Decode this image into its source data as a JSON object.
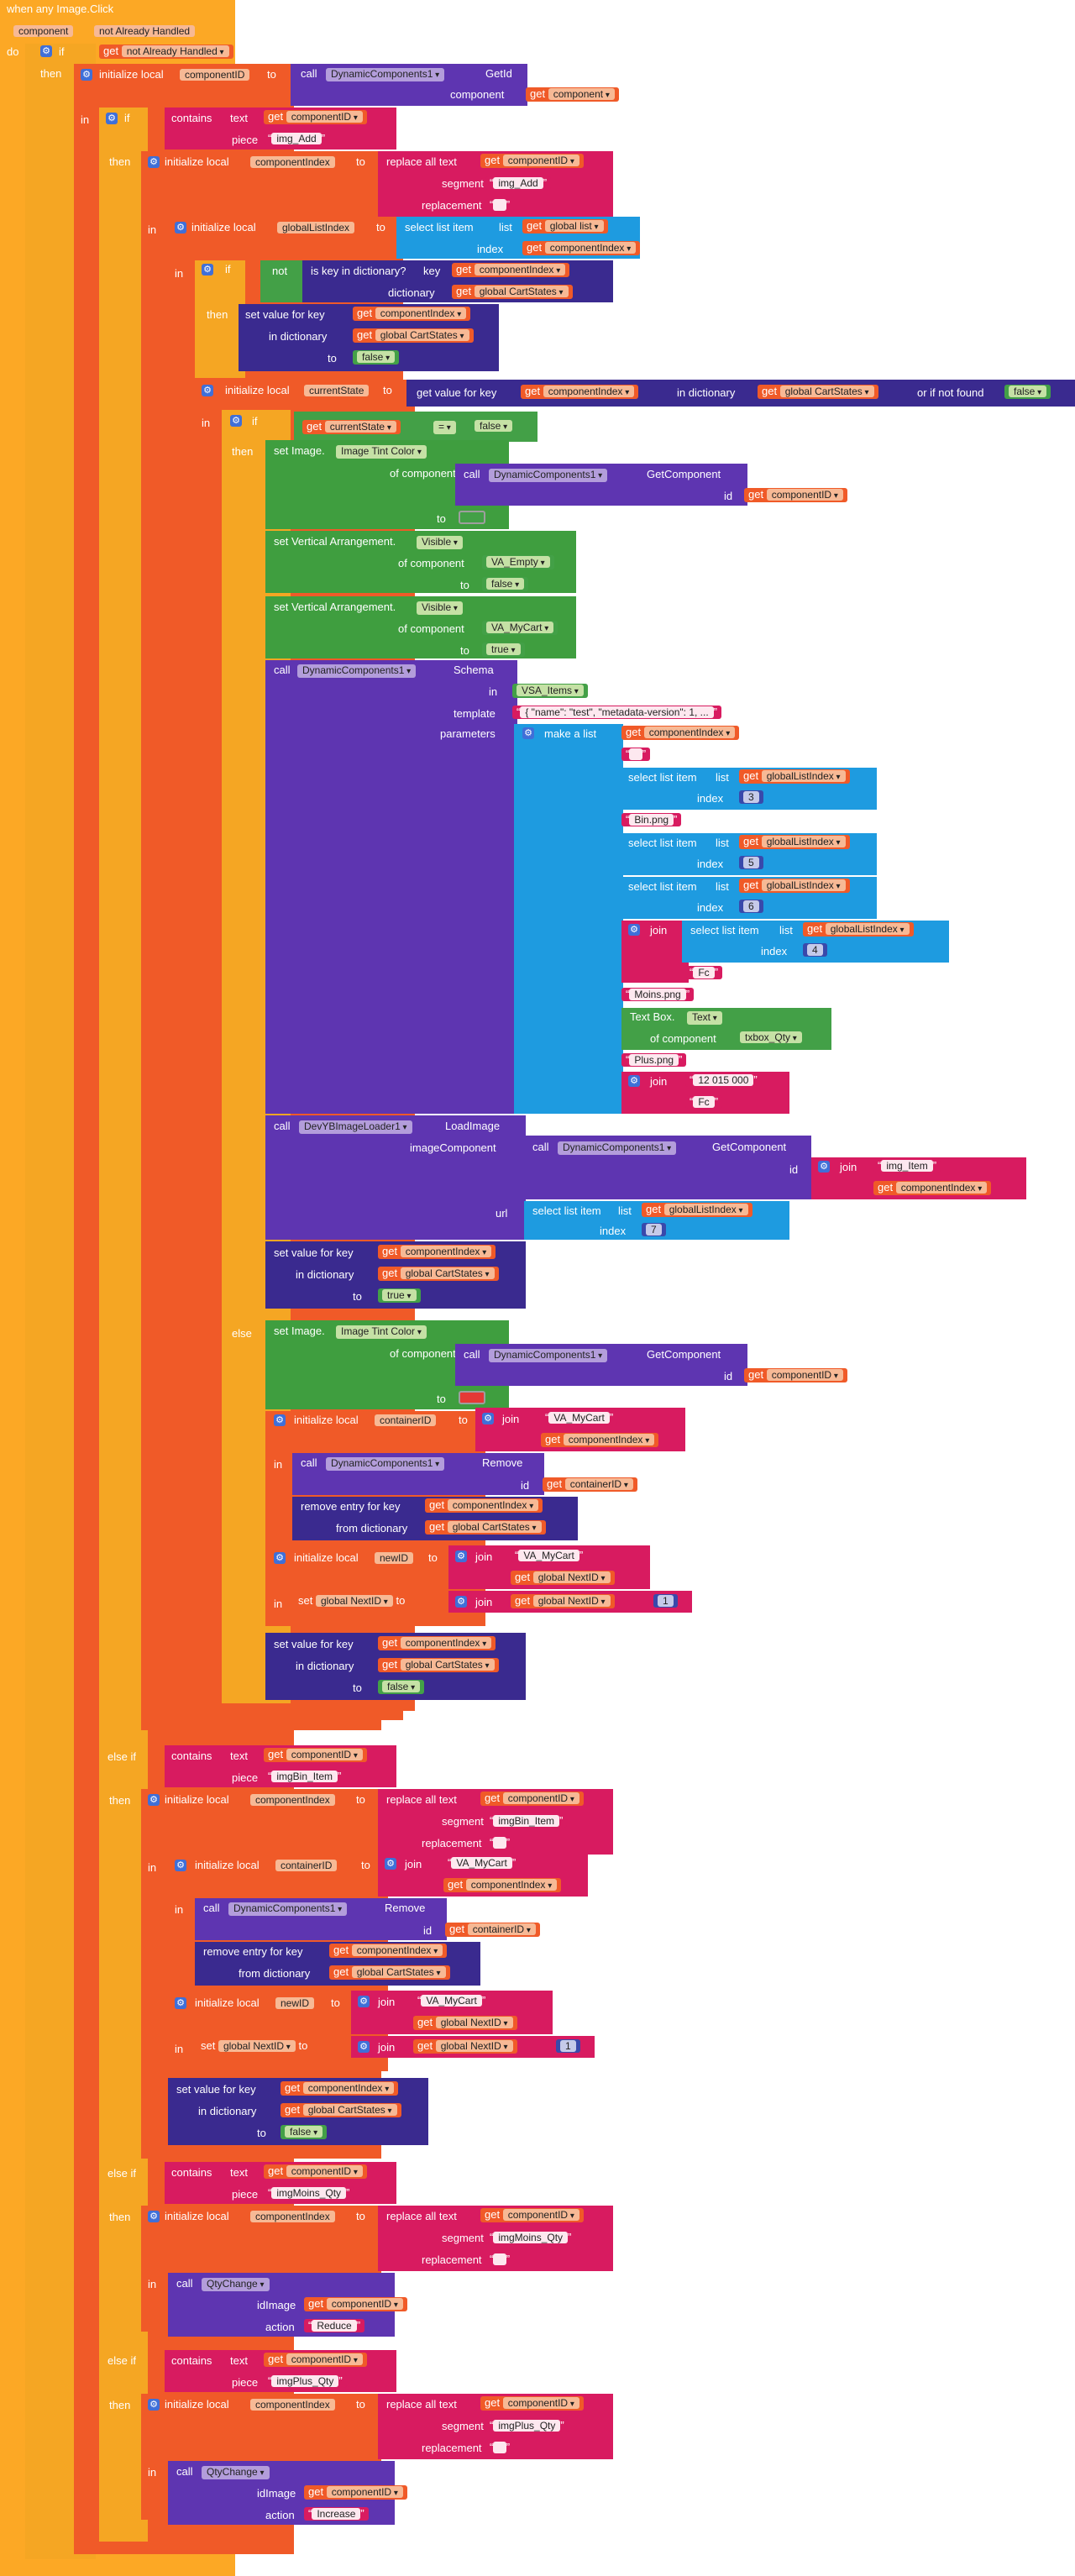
{
  "event": {
    "title": "when any Image.Click",
    "params": [
      "component",
      "notAlreadyHandled"
    ],
    "do": "do"
  },
  "k": {
    "if": "if",
    "then": "then",
    "else": "else",
    "elseif": "else if",
    "in": "in",
    "to": "to",
    "get": "get",
    "call": "call",
    "not": "not",
    "contains": "contains",
    "text": "text",
    "piece": "piece",
    "init_local": "initialize local",
    "replace_all": "replace all text",
    "segment": "segment",
    "replacement": "replacement",
    "select_item": "select list item",
    "list": "list",
    "index": "index",
    "is_key": "is key in dictionary?",
    "key": "key",
    "dictionary": "dictionary",
    "set_value_key": "set value for key",
    "in_dictionary": "in dictionary",
    "get_value_key": "get value for key",
    "or_if_not_found": "or if not found",
    "eq": "=",
    "make_list": "make a list",
    "join": "join",
    "remove_entry": "remove entry for key",
    "from_dictionary": "from dictionary",
    "set": "set",
    "component": "component",
    "id": "id",
    "of_component": "of component",
    "template": "template",
    "parameters": "parameters",
    "url": "url",
    "imageComponent": "imageComponent",
    "idImage": "idImage",
    "action": "action",
    "false": "false",
    "true": "true"
  },
  "v": {
    "notAlreadyHandled": "not Already Handled",
    "component": "component",
    "componentID": "componentID",
    "componentIndex": "componentIndex",
    "globalListIndex": "globalListIndex",
    "global_list": "global list",
    "global_cart": "global CartStates",
    "currentState": "currentState",
    "containerID": "containerID",
    "newID": "newID",
    "global_next": "global NextID"
  },
  "c": {
    "dc": "DynamicComponents1",
    "getid": "GetId",
    "getcomponent": "GetComponent",
    "schema": "Schema",
    "remove": "Remove",
    "loader": "DevYBImageLoader1",
    "loadimage": "LoadImage",
    "qty": "QtyChange",
    "set_image": "set Image.",
    "image_tint": "Image Tint Color",
    "set_va": "set Vertical Arrangement.",
    "visible": "Visible",
    "va_empty": "VA_Empty",
    "va_mycart": "VA_MyCart",
    "vsa_items": "VSA_Items",
    "textbox": "Text Box.",
    "textprop": "Text",
    "txbox_qty": "txbox_Qty"
  },
  "s": {
    "img_add": "img_Add",
    "empty": " ",
    "template_json": "{ \"name\": \"test\", \"metadata-version\": 1, ...",
    "bin": "Bin.png",
    "fc": "Fc",
    "moins": "Moins.png",
    "plus": "Plus.png",
    "price": "12 015 000",
    "img_item": "img_Item",
    "va_mycart": "VA_MyCart",
    "imgbin_item": "imgBin_Item",
    "imgmoins_qty": "imgMoins_Qty",
    "imgplus_qty": "imgPlus_Qty",
    "reduce": "Reduce",
    "increase": "Increase"
  },
  "n": {
    "n1": "1",
    "n3": "3",
    "n4": "4",
    "n5": "5",
    "n6": "6",
    "n7": "7"
  },
  "colors": {
    "event": "#fca825",
    "control": "#f5a623",
    "variables": "#f05a28",
    "text": "#d81b60",
    "logic": "#43a047",
    "component": "#5e35b1",
    "dictionary": "#3a2a8f",
    "list": "#1e9be0",
    "tint_on": "#43a047",
    "tint_off": "#e53935"
  }
}
